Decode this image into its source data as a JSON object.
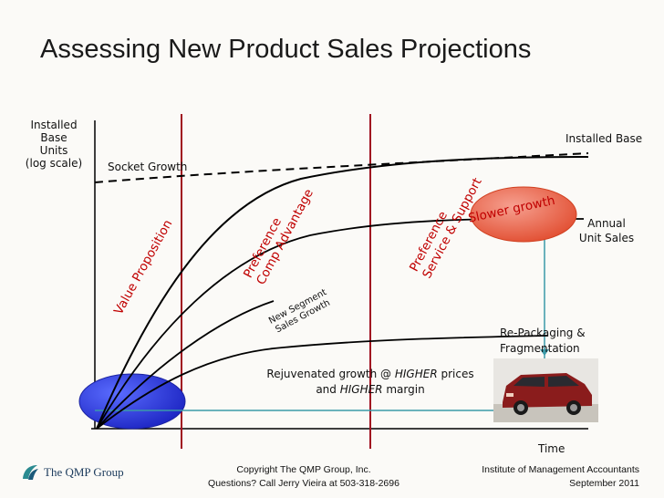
{
  "slide": {
    "title": "Assessing New Product Sales Projections",
    "y_axis_label": [
      "Installed",
      "Base",
      "Units",
      "(log scale)"
    ],
    "x_axis_label": "Time",
    "labels": {
      "socket_growth": "Socket Growth",
      "installed_base": "Installed Base",
      "annual_unit_sales": [
        "Annual",
        "Unit Sales"
      ],
      "slower_growth": "Slower growth",
      "repackaging": [
        "Re-Packaging &",
        "Fragmentation"
      ],
      "rejuvenated": [
        "Rejuvenated growth @ ",
        "HIGHER",
        " prices"
      ],
      "rejuvenated_line2": [
        "and ",
        "HIGHER",
        " margin"
      ],
      "new_segment": [
        "New Segment",
        "Sales Growth"
      ],
      "value_proposition": "Value Proposition",
      "preference_comp": [
        "Preference",
        "Comp Advantage"
      ],
      "preference_service": [
        "Preference",
        "Service & Support"
      ]
    },
    "footer": {
      "copyright": "Copyright The QMP Group, Inc.",
      "questions": "Questions? Call Jerry Vieira at 503-318-2696",
      "institute": "Institute of Management Accountants",
      "date": "September 2011",
      "logo_text": "The QMP Group"
    },
    "colors": {
      "red_line": "#a01020",
      "blue_oval": "#2030d0",
      "red_oval": "#e0482a",
      "teal_line": "#3a9aa8",
      "rotated_text": "#c00000"
    },
    "icons": [
      "car-photo",
      "qmp-logo-icon"
    ]
  }
}
